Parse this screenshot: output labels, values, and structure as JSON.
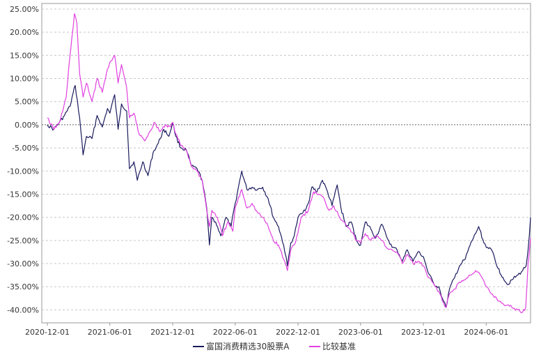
{
  "chart_data": {
    "type": "line",
    "title": "",
    "xlabel": "",
    "ylabel": "",
    "ylim": [
      -45,
      25
    ],
    "y_ticks": [
      25,
      20,
      15,
      10,
      5,
      0,
      -5,
      -10,
      -15,
      -20,
      -25,
      -30,
      -35,
      -40
    ],
    "y_tick_labels": [
      "25.00%",
      "20.00%",
      "15.00%",
      "10.00%",
      "5.00%",
      "0.00%",
      "-5.00%",
      "-10.00%",
      "-15.00%",
      "-20.00%",
      "-25.00%",
      "-30.00%",
      "-35.00%",
      "-40.00%"
    ],
    "xlim": [
      "2020-12-01",
      "2024-10-08"
    ],
    "x_ticks": [
      "2020-12-01",
      "2021-06-01",
      "2021-12-01",
      "2022-06-01",
      "2022-12-01",
      "2023-06-01",
      "2023-12-01",
      "2024-06-01"
    ],
    "x_tick_labels": [
      "2020-12-01",
      "2021-06-01",
      "2021-12-01",
      "2022-06-01",
      "2022-12-01",
      "2023-06-01",
      "2023-12-01",
      "2024-06-01"
    ],
    "grid": true,
    "legend": "bottom",
    "series": [
      {
        "name": "富国消费精选30股票A",
        "color": "#1a1a5e",
        "points": [
          [
            "2020-12-01",
            0.0
          ],
          [
            "2020-12-20",
            -1.0
          ],
          [
            "2021-01-05",
            0.5
          ],
          [
            "2021-01-20",
            2.0
          ],
          [
            "2021-02-05",
            4.0
          ],
          [
            "2021-02-20",
            8.5
          ],
          [
            "2021-03-05",
            1.5
          ],
          [
            "2021-03-15",
            -6.5
          ],
          [
            "2021-03-25",
            -2.5
          ],
          [
            "2021-04-10",
            -3.0
          ],
          [
            "2021-04-25",
            2.0
          ],
          [
            "2021-05-10",
            -0.5
          ],
          [
            "2021-05-25",
            3.5
          ],
          [
            "2021-06-01",
            2.5
          ],
          [
            "2021-06-15",
            6.5
          ],
          [
            "2021-06-25",
            -1.0
          ],
          [
            "2021-07-05",
            4.5
          ],
          [
            "2021-07-20",
            3.0
          ],
          [
            "2021-07-28",
            -9.5
          ],
          [
            "2021-08-10",
            -8.0
          ],
          [
            "2021-08-20",
            -12.0
          ],
          [
            "2021-09-05",
            -8.0
          ],
          [
            "2021-09-20",
            -11.0
          ],
          [
            "2021-10-05",
            -6.0
          ],
          [
            "2021-10-20",
            -4.0
          ],
          [
            "2021-11-05",
            -1.0
          ],
          [
            "2021-11-20",
            -2.5
          ],
          [
            "2021-12-01",
            0.5
          ],
          [
            "2021-12-10",
            -2.5
          ],
          [
            "2021-12-25",
            -5.0
          ],
          [
            "2022-01-10",
            -5.5
          ],
          [
            "2022-01-25",
            -9.0
          ],
          [
            "2022-02-10",
            -9.5
          ],
          [
            "2022-02-25",
            -12.0
          ],
          [
            "2022-03-10",
            -18.0
          ],
          [
            "2022-03-18",
            -26.0
          ],
          [
            "2022-03-25",
            -20.0
          ],
          [
            "2022-04-05",
            -21.0
          ],
          [
            "2022-04-20",
            -24.0
          ],
          [
            "2022-05-05",
            -20.0
          ],
          [
            "2022-05-20",
            -22.0
          ],
          [
            "2022-06-01",
            -17.0
          ],
          [
            "2022-06-20",
            -10.0
          ],
          [
            "2022-07-05",
            -14.0
          ],
          [
            "2022-07-20",
            -13.5
          ],
          [
            "2022-08-05",
            -14.0
          ],
          [
            "2022-08-20",
            -13.5
          ],
          [
            "2022-09-05",
            -16.0
          ],
          [
            "2022-09-20",
            -20.0
          ],
          [
            "2022-10-05",
            -22.0
          ],
          [
            "2022-10-20",
            -26.0
          ],
          [
            "2022-10-31",
            -30.5
          ],
          [
            "2022-11-10",
            -25.5
          ],
          [
            "2022-11-20",
            -24.0
          ],
          [
            "2022-12-01",
            -20.0
          ],
          [
            "2022-12-15",
            -19.0
          ],
          [
            "2022-12-31",
            -17.0
          ],
          [
            "2023-01-10",
            -13.5
          ],
          [
            "2023-01-25",
            -14.5
          ],
          [
            "2023-02-10",
            -12.0
          ],
          [
            "2023-02-25",
            -14.5
          ],
          [
            "2023-03-10",
            -17.5
          ],
          [
            "2023-03-25",
            -13.0
          ],
          [
            "2023-04-05",
            -18.0
          ],
          [
            "2023-04-20",
            -22.0
          ],
          [
            "2023-05-05",
            -21.0
          ],
          [
            "2023-05-20",
            -25.0
          ],
          [
            "2023-06-01",
            -26.0
          ],
          [
            "2023-06-15",
            -21.0
          ],
          [
            "2023-07-01",
            -22.5
          ],
          [
            "2023-07-15",
            -24.5
          ],
          [
            "2023-08-01",
            -21.5
          ],
          [
            "2023-08-15",
            -24.0
          ],
          [
            "2023-09-01",
            -26.5
          ],
          [
            "2023-09-15",
            -27.0
          ],
          [
            "2023-10-01",
            -29.5
          ],
          [
            "2023-10-15",
            -27.0
          ],
          [
            "2023-11-01",
            -29.5
          ],
          [
            "2023-11-15",
            -27.5
          ],
          [
            "2023-12-01",
            -28.5
          ],
          [
            "2023-12-15",
            -32.0
          ],
          [
            "2024-01-01",
            -34.5
          ],
          [
            "2024-01-15",
            -35.0
          ],
          [
            "2024-01-25",
            -37.5
          ],
          [
            "2024-02-05",
            -39.5
          ],
          [
            "2024-02-15",
            -35.5
          ],
          [
            "2024-03-01",
            -33.0
          ],
          [
            "2024-03-15",
            -30.5
          ],
          [
            "2024-04-01",
            -29.0
          ],
          [
            "2024-04-15",
            -26.0
          ],
          [
            "2024-05-01",
            -23.5
          ],
          [
            "2024-05-10",
            -22.0
          ],
          [
            "2024-05-25",
            -25.5
          ],
          [
            "2024-06-05",
            -26.5
          ],
          [
            "2024-06-20",
            -27.5
          ],
          [
            "2024-07-05",
            -31.0
          ],
          [
            "2024-07-20",
            -33.0
          ],
          [
            "2024-08-01",
            -34.5
          ],
          [
            "2024-08-15",
            -33.5
          ],
          [
            "2024-09-01",
            -32.5
          ],
          [
            "2024-09-15",
            -31.5
          ],
          [
            "2024-09-25",
            -30.5
          ],
          [
            "2024-10-01",
            -27.0
          ],
          [
            "2024-10-08",
            -20.0
          ]
        ]
      },
      {
        "name": "比较基准",
        "color": "#e040e0",
        "points": [
          [
            "2020-12-01",
            1.5
          ],
          [
            "2020-12-20",
            -1.0
          ],
          [
            "2021-01-05",
            0.5
          ],
          [
            "2021-01-15",
            3.0
          ],
          [
            "2021-01-25",
            6.0
          ],
          [
            "2021-02-05",
            15.0
          ],
          [
            "2021-02-10",
            18.5
          ],
          [
            "2021-02-18",
            24.0
          ],
          [
            "2021-02-25",
            22.0
          ],
          [
            "2021-03-05",
            11.0
          ],
          [
            "2021-03-15",
            6.0
          ],
          [
            "2021-03-25",
            9.0
          ],
          [
            "2021-04-10",
            5.0
          ],
          [
            "2021-04-25",
            10.0
          ],
          [
            "2021-05-10",
            7.0
          ],
          [
            "2021-05-25",
            12.0
          ],
          [
            "2021-06-01",
            13.5
          ],
          [
            "2021-06-15",
            15.0
          ],
          [
            "2021-06-25",
            9.0
          ],
          [
            "2021-07-05",
            13.0
          ],
          [
            "2021-07-20",
            8.0
          ],
          [
            "2021-07-28",
            1.5
          ],
          [
            "2021-08-10",
            2.5
          ],
          [
            "2021-08-25",
            -2.0
          ],
          [
            "2021-09-10",
            -3.5
          ],
          [
            "2021-09-25",
            -1.5
          ],
          [
            "2021-10-10",
            0.5
          ],
          [
            "2021-10-25",
            -1.5
          ],
          [
            "2021-11-10",
            0.0
          ],
          [
            "2021-11-25",
            -0.5
          ],
          [
            "2021-12-01",
            0.5
          ],
          [
            "2021-12-10",
            -2.0
          ],
          [
            "2021-12-25",
            -4.5
          ],
          [
            "2022-01-10",
            -5.5
          ],
          [
            "2022-01-25",
            -9.0
          ],
          [
            "2022-02-10",
            -10.0
          ],
          [
            "2022-02-25",
            -12.0
          ],
          [
            "2022-03-10",
            -18.5
          ],
          [
            "2022-03-18",
            -22.0
          ],
          [
            "2022-03-25",
            -18.5
          ],
          [
            "2022-04-10",
            -20.0
          ],
          [
            "2022-04-25",
            -24.0
          ],
          [
            "2022-05-10",
            -21.0
          ],
          [
            "2022-05-25",
            -23.0
          ],
          [
            "2022-06-01",
            -18.0
          ],
          [
            "2022-06-20",
            -14.0
          ],
          [
            "2022-07-05",
            -18.0
          ],
          [
            "2022-07-20",
            -17.0
          ],
          [
            "2022-08-05",
            -19.0
          ],
          [
            "2022-08-20",
            -20.0
          ],
          [
            "2022-09-05",
            -22.0
          ],
          [
            "2022-09-20",
            -25.0
          ],
          [
            "2022-10-05",
            -26.0
          ],
          [
            "2022-10-20",
            -29.0
          ],
          [
            "2022-10-31",
            -31.5
          ],
          [
            "2022-11-10",
            -27.0
          ],
          [
            "2022-11-25",
            -25.0
          ],
          [
            "2022-12-10",
            -20.0
          ],
          [
            "2022-12-31",
            -18.5
          ],
          [
            "2023-01-15",
            -14.5
          ],
          [
            "2023-01-30",
            -15.0
          ],
          [
            "2023-02-15",
            -16.0
          ],
          [
            "2023-03-01",
            -18.5
          ],
          [
            "2023-03-15",
            -17.5
          ],
          [
            "2023-04-01",
            -20.0
          ],
          [
            "2023-04-15",
            -21.0
          ],
          [
            "2023-05-01",
            -22.5
          ],
          [
            "2023-05-20",
            -25.0
          ],
          [
            "2023-06-01",
            -25.5
          ],
          [
            "2023-06-15",
            -23.5
          ],
          [
            "2023-07-01",
            -25.0
          ],
          [
            "2023-07-15",
            -24.0
          ],
          [
            "2023-08-01",
            -25.0
          ],
          [
            "2023-08-15",
            -26.5
          ],
          [
            "2023-09-01",
            -27.0
          ],
          [
            "2023-09-15",
            -27.5
          ],
          [
            "2023-10-01",
            -30.0
          ],
          [
            "2023-10-15",
            -28.0
          ],
          [
            "2023-11-01",
            -30.0
          ],
          [
            "2023-11-15",
            -29.5
          ],
          [
            "2023-12-01",
            -30.5
          ],
          [
            "2023-12-15",
            -33.0
          ],
          [
            "2024-01-01",
            -34.5
          ],
          [
            "2024-01-15",
            -36.0
          ],
          [
            "2024-01-25",
            -38.0
          ],
          [
            "2024-02-05",
            -39.5
          ],
          [
            "2024-02-15",
            -36.5
          ],
          [
            "2024-03-01",
            -35.5
          ],
          [
            "2024-03-15",
            -34.0
          ],
          [
            "2024-04-01",
            -33.5
          ],
          [
            "2024-04-15",
            -32.5
          ],
          [
            "2024-05-01",
            -31.5
          ],
          [
            "2024-05-15",
            -32.5
          ],
          [
            "2024-06-01",
            -35.0
          ],
          [
            "2024-06-15",
            -36.5
          ],
          [
            "2024-07-01",
            -37.5
          ],
          [
            "2024-07-15",
            -38.5
          ],
          [
            "2024-08-01",
            -39.0
          ],
          [
            "2024-08-15",
            -39.5
          ],
          [
            "2024-09-01",
            -40.0
          ],
          [
            "2024-09-15",
            -40.5
          ],
          [
            "2024-09-24",
            -39.5
          ],
          [
            "2024-10-01",
            -30.0
          ],
          [
            "2024-10-08",
            -24.5
          ]
        ]
      }
    ]
  }
}
